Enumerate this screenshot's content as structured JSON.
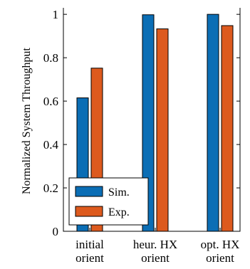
{
  "chart_data": {
    "type": "bar",
    "title": "",
    "xlabel": "",
    "ylabel": "Normalized System Throughput",
    "ylim": [
      0,
      1.03
    ],
    "yticks": [
      0,
      0.2,
      0.4,
      0.6,
      0.8,
      1
    ],
    "ytick_labels": [
      "0",
      "0.2",
      "0.4",
      "0.6",
      "0.8",
      "1"
    ],
    "categories": [
      [
        "initial",
        "orient"
      ],
      [
        "heur. HX",
        "orient"
      ],
      [
        "opt. HX",
        "orient"
      ]
    ],
    "series": [
      {
        "name": "Sim.",
        "color": "#0b6eb5",
        "values": [
          0.615,
          0.998,
          1.0
        ]
      },
      {
        "name": "Exp.",
        "color": "#dd5a1e",
        "values": [
          0.752,
          0.933,
          0.948
        ]
      }
    ],
    "legend": {
      "placement": "bottom-left"
    },
    "grid": false
  }
}
